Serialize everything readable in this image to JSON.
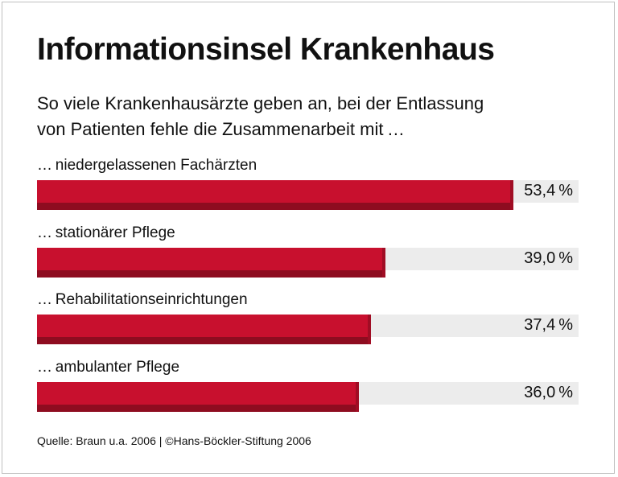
{
  "chart_data": {
    "type": "bar",
    "orientation": "horizontal",
    "title": "Informationsinsel Krankenhaus",
    "subtitle": [
      "So viele Krankenhausärzte geben an, bei der Entlassung",
      "von Patienten fehle die Zusammenarbeit mit …"
    ],
    "categories": [
      "… niedergelassenen Fachärzten",
      "… stationärer Pflege",
      "… Rehabilitationseinrichtungen",
      "… ambulanter Pflege"
    ],
    "values": [
      53.4,
      39.0,
      37.4,
      36.0
    ],
    "value_labels": [
      "53,4 %",
      "39,0 %",
      "37,4 %",
      "36,0 %"
    ],
    "unit": "%",
    "xlim": [
      0,
      60
    ],
    "source": "Quelle: Braun u.a. 2006 | ©Hans-Böckler-Stiftung 2006",
    "colors": {
      "bar": "#c8102e",
      "bar_shadow": "#8e0c20",
      "track": "#ececec"
    }
  }
}
